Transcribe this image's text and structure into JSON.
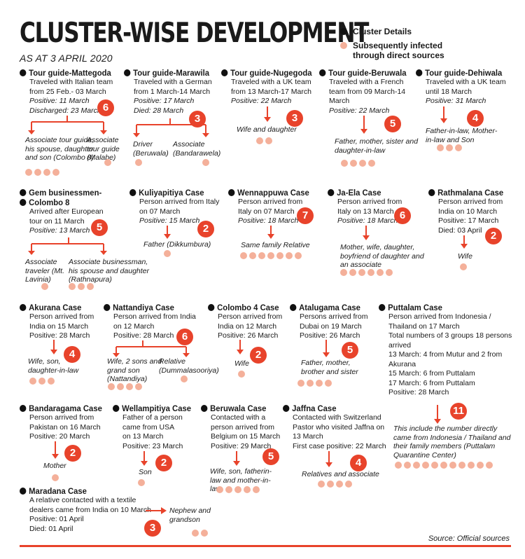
{
  "header": {
    "title": "CLUSTER-WISE DEVELOPMENT",
    "subtitle": "AS AT 3 APRIL 2020"
  },
  "legend": {
    "cluster_label": "Cluster Details",
    "infected_label": "Subsequently infected through direct sources",
    "cluster_color": "#111111",
    "infected_color": "#f4b09a"
  },
  "colors": {
    "accent": "#e8432b"
  },
  "cases": {
    "mattegoda": {
      "name": "Tour guide-Mattegoda",
      "lines": [
        "Traveled with Italian team",
        "from 25 Feb.- 03 March",
        "Positive: 11 March",
        "Discharged: 23 March"
      ],
      "count": "6",
      "relatives": [
        "Associate tour guide, his spouse, daughter and son (Colombo 8)",
        "Associate tour guide (Malabe)"
      ]
    },
    "marawila": {
      "name": "Tour guide-Marawila",
      "lines": [
        "Traveled with a German",
        "from 1 March-14 March",
        "Positive: 17 March",
        "Died: 28 March"
      ],
      "count": "3",
      "relatives": [
        "Driver (Beruwala)",
        "Associate (Bandarawela)"
      ]
    },
    "nugegoda": {
      "name": "Tour guide-Nugegoda",
      "lines": [
        "Traveled with a UK team",
        "from 13 March-17 March",
        "Positive: 22 March"
      ],
      "count": "3",
      "relatives": [
        "Wife and daughter"
      ]
    },
    "beruwala_guide": {
      "name": "Tour guide-Beruwala",
      "lines": [
        "Traveled with a French",
        "team from 09 March-14",
        "March",
        "Positive: 22 March"
      ],
      "count": "5",
      "relatives": [
        "Father, mother, sister and daughter-in-law"
      ]
    },
    "dehiwala": {
      "name": "Tour guide-Dehiwala",
      "lines": [
        "Traveled with a UK team",
        "until 18 March",
        "Positive: 31 March"
      ],
      "count": "4",
      "relatives": [
        "Father-in-law, Mother-in-law and Son"
      ]
    },
    "gem": {
      "name": "Gem businessmen-",
      "name2": "Colombo 8",
      "lines": [
        "Arrived after European",
        "tour on 11 March",
        "Positive: 13 March"
      ],
      "count": "5",
      "relatives": [
        "Associate traveler (Mt. Lavinia)",
        "Associate businessman, his spouse and daughter (Rathnapura)"
      ]
    },
    "kuliyapitiya": {
      "name": "Kuliyapitiya Case",
      "lines": [
        "Person arrived from Italy",
        "on 07 March",
        "Positive: 15 March"
      ],
      "count": "2",
      "relatives": [
        "Father (Dikkumbura)"
      ]
    },
    "wennappuwa": {
      "name": "Wennappuwa Case",
      "lines": [
        "Person arrived from",
        "Italy on 07 March",
        "Positive: 18 March"
      ],
      "count": "7",
      "relatives": [
        "Same family Relative"
      ]
    },
    "jaela": {
      "name": "Ja-Ela Case",
      "lines": [
        "Person arrived from",
        "Italy on 13 March",
        "Positive: 18 March"
      ],
      "count": "6",
      "relatives": [
        "Mother, wife, daughter, boyfriend of daughter and an associate"
      ]
    },
    "rathmalana": {
      "name": "Rathmalana Case",
      "lines": [
        "Person arrived from",
        "India on 10 March",
        "Positive: 17 March",
        "Died: 03 April"
      ],
      "count": "2",
      "relatives": [
        "Wife"
      ]
    },
    "akurana": {
      "name": "Akurana Case",
      "lines": [
        "Person arrived from",
        "India on 15 March",
        "Positive: 28 March"
      ],
      "count": "4",
      "relatives": [
        "Wife, son, daughter-in-law"
      ]
    },
    "nattandiya": {
      "name": "Nattandiya Case",
      "lines": [
        "Person arrived from India",
        "on 12 March",
        "Positive: 28 March"
      ],
      "count": "6",
      "relatives": [
        "Wife, 2 sons and grand son (Nattandiya)",
        "Relative (Dummalasooriya)"
      ]
    },
    "colombo4": {
      "name": "Colombo 4 Case",
      "lines": [
        "Person arrived from",
        "India on 12 March",
        "Positive: 26 March"
      ],
      "count": "2",
      "relatives": [
        "Wife"
      ]
    },
    "atalugama": {
      "name": "Atalugama Case",
      "lines": [
        "Persons arrived from",
        "Dubai on 19 March",
        "Positive: 26 March"
      ],
      "count": "5",
      "relatives": [
        "Father, mother, brother and sister"
      ]
    },
    "puttalam": {
      "name": "Puttalam Case",
      "lines": [
        "Person arrived from Indonesia /",
        "Thailand on 17 March",
        "Total numbers of 3 groups 18 persons",
        "arrived",
        "13 March: 4 from Mutur and 2 from",
        "Akurana",
        "15 March: 6 from Puttalam",
        "17 March: 6 from Puttalam",
        "Positive: 28 March"
      ],
      "count": "11",
      "relatives": [
        "This include the number directly came from Indonesia / Thailand and their family members (Puttalam Quarantine Center)"
      ]
    },
    "bandaragama": {
      "name": "Bandaragama Case",
      "lines": [
        "Person arrived from",
        "Pakistan on 16 March",
        "Positive: 20 March"
      ],
      "count": "2",
      "relatives": [
        "Mother"
      ]
    },
    "wellampitiya": {
      "name": "Wellampitiya Case",
      "lines": [
        "Father of a person",
        "came from USA",
        "on 13 March",
        "Positive: 23 March"
      ],
      "count": "2",
      "relatives": [
        "Son"
      ]
    },
    "beruwala_case": {
      "name": "Beruwala Case",
      "lines": [
        "Contacted with a",
        "person arrived from",
        "Belgium on 15 March",
        "Positive: 29 March"
      ],
      "count": "5",
      "relatives": [
        "Wife, son, fatherin-law and mother-in-law"
      ]
    },
    "jaffna": {
      "name": "Jaffna Case",
      "lines": [
        "Contacted with Switzerland",
        "Pastor who visited Jaffna on",
        "13 March",
        "First case positive: 22 March"
      ],
      "count": "4",
      "relatives": [
        "Relatives and associate"
      ]
    },
    "maradana": {
      "name": "Maradana Case",
      "lines": [
        "A relative contacted with a textile",
        "dealers came from India on 10 March",
        "Positive: 01 April",
        "Died: 01 April"
      ],
      "count": "3",
      "relatives": [
        "Nephew and grandson"
      ]
    }
  },
  "footer": {
    "source": "Source: Official sources"
  }
}
